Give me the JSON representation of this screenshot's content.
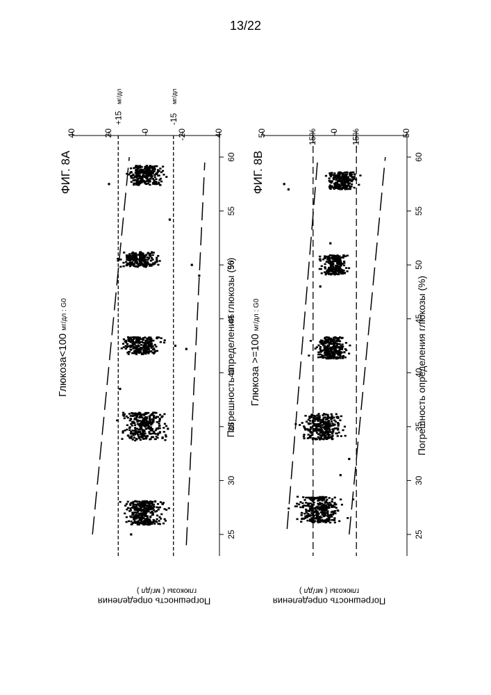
{
  "page_number": "13/22",
  "chart_data": [
    {
      "type": "scatter",
      "figure_label": "ФИГ. 8A",
      "title": "Глюкоза<100 мг/дл : G0",
      "title_main": "Глюкоза<100",
      "title_unit": "мг/дл : G0",
      "xlabel": "Погрешность определения глюкозы (%)",
      "ylabel_line1": "Погрешность определения",
      "ylabel_line2": "глюкозы ( мг/дл )",
      "xlim": [
        23,
        62
      ],
      "ylim": [
        -40,
        40
      ],
      "xticks": [
        25,
        30,
        35,
        40,
        45,
        50,
        55,
        60
      ],
      "yticks": [
        40,
        20,
        0,
        -20,
        -40
      ],
      "ytick_labels": [
        "40",
        "20",
        "0",
        "-20",
        "-40"
      ],
      "reference_lines": [
        {
          "y": 15,
          "label": "+15",
          "unit": "мг/дл",
          "style": "short-dash"
        },
        {
          "y": -15,
          "label": "-15",
          "unit": "мг/дл",
          "style": "short-dash"
        }
      ],
      "envelope_lines": [
        {
          "x": [
            25,
            60
          ],
          "y": [
            29,
            9
          ],
          "style": "long-dash"
        },
        {
          "x": [
            24,
            59.5
          ],
          "y": [
            -22,
            -32
          ],
          "style": "long-dash"
        }
      ],
      "clusters": [
        {
          "x_center": 27.0,
          "x_spread": 1.1,
          "y_center": 1.0,
          "y_spread": 8.5,
          "n": 320
        },
        {
          "x_center": 35.0,
          "x_spread": 1.3,
          "y_center": 1.0,
          "y_spread": 9.5,
          "n": 300
        },
        {
          "x_center": 42.5,
          "x_spread": 0.8,
          "y_center": 2.5,
          "y_spread": 9.0,
          "n": 230
        },
        {
          "x_center": 50.5,
          "x_spread": 0.7,
          "y_center": 4.0,
          "y_spread": 9.0,
          "n": 200
        },
        {
          "x_center": 58.3,
          "x_spread": 0.9,
          "y_center": 0.0,
          "y_spread": 7.5,
          "n": 260
        }
      ],
      "outliers": [
        {
          "x": 25.0,
          "y": 8
        },
        {
          "x": 34.8,
          "y": -12
        },
        {
          "x": 38.5,
          "y": 14
        },
        {
          "x": 42.2,
          "y": -22
        },
        {
          "x": 42.5,
          "y": -16
        },
        {
          "x": 49.0,
          "y": -29
        },
        {
          "x": 50.0,
          "y": -25
        },
        {
          "x": 54.2,
          "y": -13
        },
        {
          "x": 57.5,
          "y": 20
        }
      ]
    },
    {
      "type": "scatter",
      "figure_label": "ФИГ. 8B",
      "title": "Глюкоза >=100 мг/дл : G0",
      "title_main": "Глюкоза >=100",
      "title_unit": "мг/дл : G0",
      "xlabel": "Погрешность определения глюкозы (%)",
      "ylabel_line1": "Погрешность определения",
      "ylabel_line2": "глюкозы ( мг/дл )",
      "xlim": [
        23,
        62
      ],
      "ylim": [
        -50,
        50
      ],
      "xticks": [
        25,
        30,
        35,
        40,
        45,
        50,
        55,
        60
      ],
      "yticks": [
        50,
        15,
        0,
        -15,
        -50
      ],
      "ytick_labels": [
        "50",
        "15%",
        "0",
        "-15%",
        "-50"
      ],
      "reference_lines": [
        {
          "y": 15,
          "label": "",
          "style": "long-dash"
        },
        {
          "y": -15,
          "label": "",
          "style": "long-dash"
        }
      ],
      "envelope_lines": [
        {
          "x": [
            25.5,
            59.5
          ],
          "y": [
            33,
            12
          ],
          "style": "long-dash"
        },
        {
          "x": [
            25,
            60
          ],
          "y": [
            -10,
            -35
          ],
          "style": "long-dash"
        }
      ],
      "clusters": [
        {
          "x_center": 27.3,
          "x_spread": 1.2,
          "y_center": 11.0,
          "y_spread": 12.0,
          "n": 330
        },
        {
          "x_center": 35.0,
          "x_spread": 1.2,
          "y_center": 8.0,
          "y_spread": 11.0,
          "n": 300
        },
        {
          "x_center": 42.3,
          "x_spread": 1.0,
          "y_center": 2.0,
          "y_spread": 9.0,
          "n": 280
        },
        {
          "x_center": 50.0,
          "x_spread": 0.9,
          "y_center": 0.0,
          "y_spread": 8.0,
          "n": 230
        },
        {
          "x_center": 57.8,
          "x_spread": 0.8,
          "y_center": -5.0,
          "y_spread": 8.0,
          "n": 250
        }
      ],
      "outliers": [
        {
          "x": 30.5,
          "y": -4
        },
        {
          "x": 32.0,
          "y": -10
        },
        {
          "x": 48.0,
          "y": 10
        },
        {
          "x": 52.0,
          "y": 3
        },
        {
          "x": 57.0,
          "y": 32
        },
        {
          "x": 57.5,
          "y": 35
        }
      ]
    }
  ]
}
